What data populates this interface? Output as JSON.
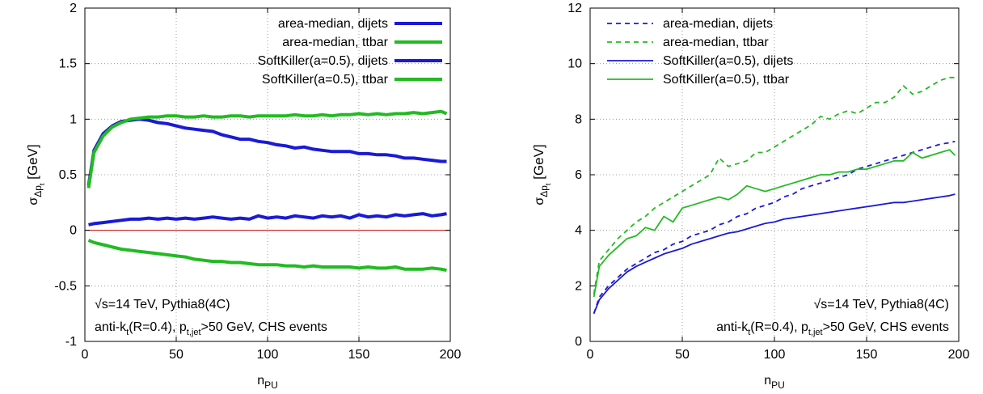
{
  "chart_data": [
    {
      "type": "line",
      "xlabel": "n",
      "xlabel_sub": "PU",
      "ylabel": "σ",
      "ylabel_sub": "Δp",
      "ylabel_subsub": "t",
      "ylabel_unit": " [GeV]",
      "xlim": [
        0,
        200
      ],
      "ylim": [
        -1,
        2
      ],
      "xticks": [
        0,
        50,
        100,
        150,
        200
      ],
      "yticks": [
        -1,
        -0.5,
        0,
        0.5,
        1,
        1.5,
        2
      ],
      "ytick_labels": [
        "-1",
        "-0.5",
        "0",
        "0.5",
        "1",
        "1.5",
        "2"
      ],
      "grid": true,
      "legend_position": "top-right",
      "zero_line": {
        "y": 0,
        "color": "#cc0000"
      },
      "annotations": {
        "line1": "√s=14 TeV, Pythia8(4C)",
        "line2_a": "anti-k",
        "line2_a_sub": "t",
        "line2_b": "(R=0.4), p",
        "line2_b_sub": "t,jet",
        "line2_c": ">50 GeV, CHS events"
      },
      "series": [
        {
          "name": "area-median, dijets",
          "color": "#1a1ad6",
          "dash": false,
          "x": [
            2,
            5,
            10,
            15,
            20,
            25,
            30,
            35,
            40,
            45,
            50,
            55,
            60,
            65,
            70,
            75,
            80,
            85,
            90,
            95,
            100,
            105,
            110,
            115,
            120,
            125,
            130,
            135,
            140,
            145,
            150,
            155,
            160,
            165,
            170,
            175,
            180,
            185,
            190,
            195,
            198
          ],
          "y": [
            0.4,
            0.72,
            0.87,
            0.94,
            0.98,
            0.99,
            1.0,
            0.99,
            0.97,
            0.96,
            0.94,
            0.92,
            0.91,
            0.9,
            0.89,
            0.86,
            0.84,
            0.82,
            0.82,
            0.8,
            0.79,
            0.77,
            0.76,
            0.74,
            0.75,
            0.73,
            0.72,
            0.71,
            0.71,
            0.71,
            0.69,
            0.69,
            0.68,
            0.68,
            0.67,
            0.65,
            0.65,
            0.64,
            0.63,
            0.62,
            0.62
          ]
        },
        {
          "name": "area-median, ttbar",
          "color": "#22bb22",
          "dash": false,
          "x": [
            2,
            5,
            10,
            15,
            20,
            25,
            30,
            35,
            40,
            45,
            50,
            55,
            60,
            65,
            70,
            75,
            80,
            85,
            90,
            95,
            100,
            105,
            110,
            115,
            120,
            125,
            130,
            135,
            140,
            145,
            150,
            155,
            160,
            165,
            170,
            175,
            180,
            185,
            190,
            195,
            198
          ],
          "y": [
            0.38,
            0.7,
            0.85,
            0.93,
            0.97,
            1.0,
            1.01,
            1.02,
            1.02,
            1.03,
            1.03,
            1.02,
            1.02,
            1.03,
            1.02,
            1.02,
            1.03,
            1.03,
            1.02,
            1.03,
            1.03,
            1.03,
            1.03,
            1.04,
            1.03,
            1.03,
            1.04,
            1.03,
            1.04,
            1.04,
            1.05,
            1.04,
            1.05,
            1.04,
            1.05,
            1.05,
            1.06,
            1.05,
            1.06,
            1.07,
            1.05
          ]
        },
        {
          "name": "SoftKiller(a=0.5), dijets",
          "color": "#1a1ad6",
          "dash": false,
          "x": [
            2,
            5,
            10,
            15,
            20,
            25,
            30,
            35,
            40,
            45,
            50,
            55,
            60,
            65,
            70,
            75,
            80,
            85,
            90,
            95,
            100,
            105,
            110,
            115,
            120,
            125,
            130,
            135,
            140,
            145,
            150,
            155,
            160,
            165,
            170,
            175,
            180,
            185,
            190,
            195,
            198
          ],
          "y": [
            0.05,
            0.06,
            0.07,
            0.08,
            0.09,
            0.1,
            0.1,
            0.11,
            0.1,
            0.11,
            0.1,
            0.11,
            0.1,
            0.11,
            0.12,
            0.11,
            0.1,
            0.11,
            0.1,
            0.13,
            0.11,
            0.12,
            0.11,
            0.13,
            0.12,
            0.11,
            0.13,
            0.12,
            0.13,
            0.11,
            0.14,
            0.12,
            0.13,
            0.12,
            0.14,
            0.13,
            0.14,
            0.15,
            0.13,
            0.14,
            0.15
          ]
        },
        {
          "name": "SoftKiller(a=0.5), ttbar",
          "color": "#22bb22",
          "dash": false,
          "x": [
            2,
            5,
            10,
            15,
            20,
            25,
            30,
            35,
            40,
            45,
            50,
            55,
            60,
            65,
            70,
            75,
            80,
            85,
            90,
            95,
            100,
            105,
            110,
            115,
            120,
            125,
            130,
            135,
            140,
            145,
            150,
            155,
            160,
            165,
            170,
            175,
            180,
            185,
            190,
            195,
            198
          ],
          "y": [
            -0.09,
            -0.11,
            -0.13,
            -0.15,
            -0.17,
            -0.18,
            -0.19,
            -0.2,
            -0.21,
            -0.22,
            -0.23,
            -0.24,
            -0.26,
            -0.27,
            -0.28,
            -0.28,
            -0.29,
            -0.29,
            -0.3,
            -0.31,
            -0.31,
            -0.31,
            -0.32,
            -0.32,
            -0.33,
            -0.32,
            -0.33,
            -0.33,
            -0.33,
            -0.33,
            -0.34,
            -0.33,
            -0.34,
            -0.34,
            -0.33,
            -0.35,
            -0.35,
            -0.35,
            -0.34,
            -0.35,
            -0.36
          ]
        }
      ]
    },
    {
      "type": "line",
      "xlabel": "n",
      "xlabel_sub": "PU",
      "ylabel": "σ",
      "ylabel_sub": "Δp",
      "ylabel_subsub": "t",
      "ylabel_unit": " [GeV]",
      "xlim": [
        0,
        200
      ],
      "ylim": [
        0,
        12
      ],
      "xticks": [
        0,
        50,
        100,
        150,
        200
      ],
      "yticks": [
        0,
        2,
        4,
        6,
        8,
        10,
        12
      ],
      "ytick_labels": [
        "0",
        "2",
        "4",
        "6",
        "8",
        "10",
        "12"
      ],
      "grid": true,
      "legend_position": "top-left",
      "annotations": {
        "line1": "√s=14 TeV, Pythia8(4C)",
        "line2_a": "anti-k",
        "line2_a_sub": "t",
        "line2_b": "(R=0.4), p",
        "line2_b_sub": "t,jet",
        "line2_c": ">50 GeV, CHS events"
      },
      "series": [
        {
          "name": "area-median, dijets",
          "color": "#1a1ad6",
          "dash": true,
          "x": [
            2,
            5,
            10,
            15,
            20,
            25,
            30,
            35,
            40,
            45,
            50,
            55,
            60,
            65,
            70,
            75,
            80,
            85,
            90,
            95,
            100,
            105,
            110,
            115,
            120,
            125,
            130,
            135,
            140,
            145,
            150,
            155,
            160,
            165,
            170,
            175,
            180,
            185,
            190,
            195,
            198
          ],
          "y": [
            1.0,
            1.6,
            2.0,
            2.3,
            2.6,
            2.8,
            3.0,
            3.2,
            3.3,
            3.5,
            3.6,
            3.8,
            3.9,
            4.0,
            4.2,
            4.3,
            4.5,
            4.6,
            4.8,
            4.9,
            5.0,
            5.2,
            5.3,
            5.5,
            5.6,
            5.7,
            5.8,
            5.9,
            6.0,
            6.2,
            6.3,
            6.4,
            6.5,
            6.6,
            6.7,
            6.8,
            6.9,
            7.0,
            7.1,
            7.15,
            7.2
          ]
        },
        {
          "name": "area-median, ttbar",
          "color": "#22bb22",
          "dash": true,
          "x": [
            2,
            5,
            10,
            15,
            20,
            25,
            30,
            35,
            40,
            45,
            50,
            55,
            60,
            65,
            70,
            75,
            80,
            85,
            90,
            95,
            100,
            105,
            110,
            115,
            120,
            125,
            130,
            135,
            140,
            145,
            150,
            155,
            160,
            165,
            170,
            175,
            180,
            185,
            190,
            195,
            198
          ],
          "y": [
            1.7,
            2.9,
            3.3,
            3.7,
            4.0,
            4.3,
            4.5,
            4.8,
            5.0,
            5.2,
            5.4,
            5.6,
            5.8,
            6.0,
            6.6,
            6.3,
            6.4,
            6.5,
            6.8,
            6.8,
            7.0,
            7.2,
            7.4,
            7.6,
            7.8,
            8.1,
            8.0,
            8.2,
            8.3,
            8.2,
            8.4,
            8.6,
            8.6,
            8.8,
            9.2,
            8.9,
            9.0,
            9.2,
            9.4,
            9.5,
            9.5
          ]
        },
        {
          "name": "SoftKiller(a=0.5), dijets",
          "color": "#1a1ad6",
          "dash": false,
          "x": [
            2,
            5,
            10,
            15,
            20,
            25,
            30,
            35,
            40,
            45,
            50,
            55,
            60,
            65,
            70,
            75,
            80,
            85,
            90,
            95,
            100,
            105,
            110,
            115,
            120,
            125,
            130,
            135,
            140,
            145,
            150,
            155,
            160,
            165,
            170,
            175,
            180,
            185,
            190,
            195,
            198
          ],
          "y": [
            1.0,
            1.5,
            1.9,
            2.2,
            2.5,
            2.7,
            2.85,
            3.0,
            3.15,
            3.25,
            3.35,
            3.5,
            3.6,
            3.7,
            3.8,
            3.9,
            3.95,
            4.05,
            4.15,
            4.25,
            4.3,
            4.4,
            4.45,
            4.5,
            4.55,
            4.6,
            4.65,
            4.7,
            4.75,
            4.8,
            4.85,
            4.9,
            4.95,
            5.0,
            5.0,
            5.05,
            5.1,
            5.15,
            5.2,
            5.25,
            5.3
          ]
        },
        {
          "name": "SoftKiller(a=0.5), ttbar",
          "color": "#22bb22",
          "dash": false,
          "x": [
            2,
            5,
            10,
            15,
            20,
            25,
            30,
            35,
            40,
            45,
            50,
            55,
            60,
            65,
            70,
            75,
            80,
            85,
            90,
            95,
            100,
            105,
            110,
            115,
            120,
            125,
            130,
            135,
            140,
            145,
            150,
            155,
            160,
            165,
            170,
            175,
            180,
            185,
            190,
            195,
            198
          ],
          "y": [
            1.6,
            2.7,
            3.1,
            3.4,
            3.7,
            3.8,
            4.1,
            4.0,
            4.5,
            4.3,
            4.8,
            4.9,
            5.0,
            5.1,
            5.2,
            5.1,
            5.3,
            5.6,
            5.5,
            5.4,
            5.5,
            5.6,
            5.7,
            5.8,
            5.9,
            6.0,
            6.0,
            6.1,
            6.1,
            6.2,
            6.2,
            6.3,
            6.4,
            6.5,
            6.5,
            6.8,
            6.6,
            6.7,
            6.8,
            6.9,
            6.7
          ]
        }
      ]
    }
  ]
}
